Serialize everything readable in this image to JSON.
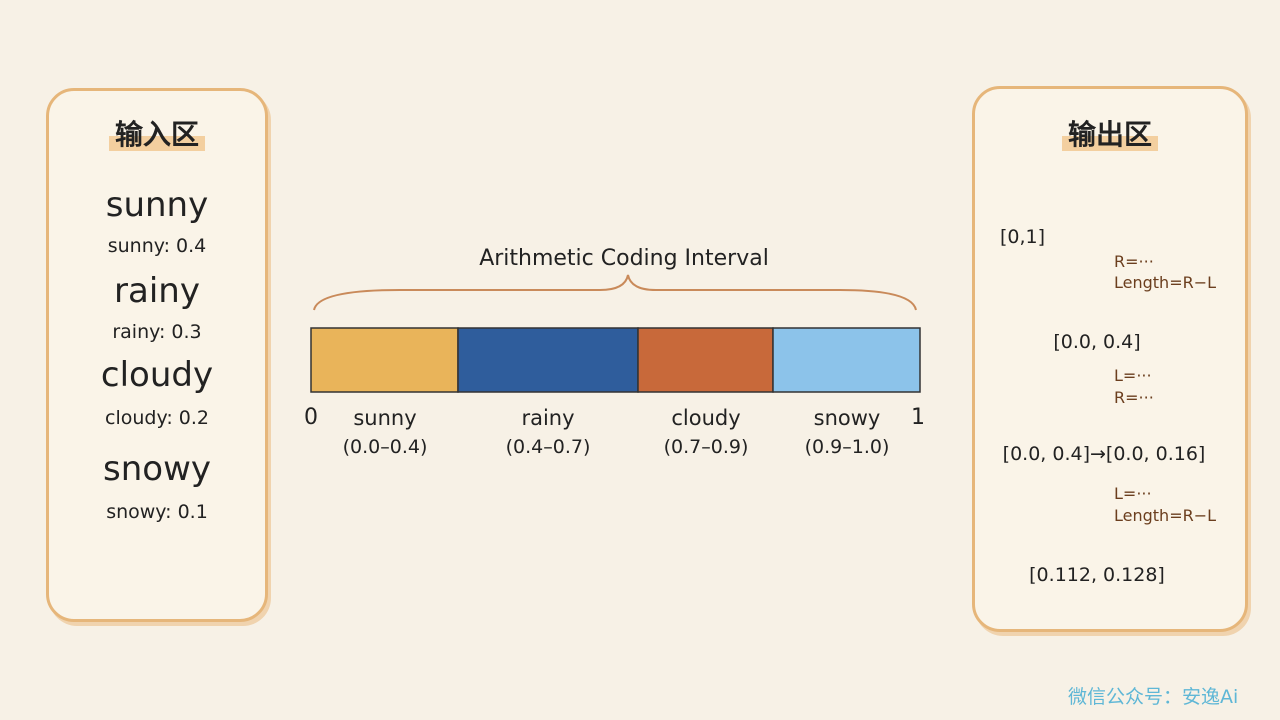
{
  "input_panel": {
    "title": "输入区",
    "items": [
      {
        "word": "sunny",
        "label": "sunny: 0.4"
      },
      {
        "word": "rainy",
        "label": "rainy: 0.3"
      },
      {
        "word": "cloudy",
        "label": "cloudy: 0.2"
      },
      {
        "word": "snowy",
        "label": "snowy: 0.1"
      }
    ]
  },
  "interval": {
    "title": "Arithmetic Coding Interval",
    "start": "0",
    "end": "1",
    "segments": [
      {
        "name": "sunny",
        "range": "(0.0–0.4)"
      },
      {
        "name": "rainy",
        "range": "(0.4–0.7)"
      },
      {
        "name": "cloudy",
        "range": "(0.7–0.9)"
      },
      {
        "name": "snowy",
        "range": "(0.9–1.0)"
      }
    ]
  },
  "output_panel": {
    "title": "输出区",
    "intervals": [
      "[0,1]",
      "[0.0, 0.4]",
      "[0.0, 0.4]→[0.0, 0.16]",
      "[0.112, 0.128]"
    ],
    "notes": [
      [
        "R=···",
        "Length=R−L"
      ],
      [
        "L=···",
        "R=···"
      ],
      [
        "L=···",
        "Length=R−L"
      ]
    ]
  },
  "watermark": "微信公众号：安逸Ai"
}
